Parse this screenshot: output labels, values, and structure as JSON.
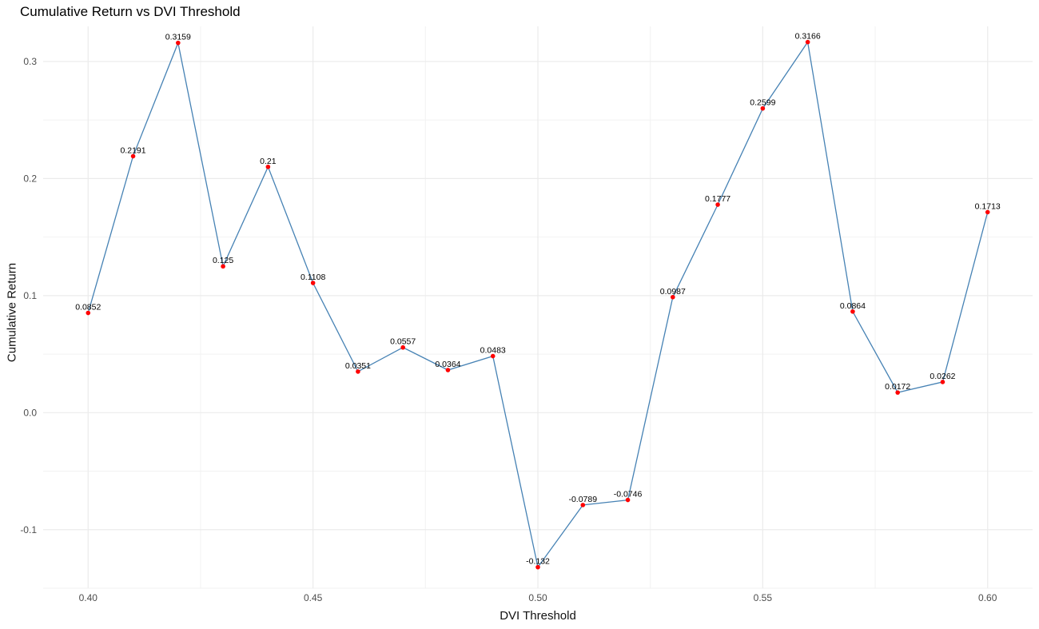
{
  "chart_data": {
    "type": "line",
    "title": "Cumulative Return vs DVI Threshold",
    "xlabel": "DVI Threshold",
    "ylabel": "Cumulative Return",
    "xlim": [
      0.39,
      0.61
    ],
    "ylim": [
      -0.15,
      0.33
    ],
    "x_ticks": [
      0.4,
      0.45,
      0.5,
      0.55,
      0.6
    ],
    "x_tick_labels": [
      "0.40",
      "0.45",
      "0.50",
      "0.55",
      "0.60"
    ],
    "y_ticks": [
      -0.1,
      0.0,
      0.1,
      0.2,
      0.3
    ],
    "y_tick_labels": [
      "-0.1",
      "0.0",
      "0.1",
      "0.2",
      "0.3"
    ],
    "grid": true,
    "line_color": "#4682b4",
    "point_color": "#ff0000",
    "x": [
      0.4,
      0.41,
      0.42,
      0.43,
      0.44,
      0.45,
      0.46,
      0.47,
      0.48,
      0.49,
      0.5,
      0.51,
      0.52,
      0.53,
      0.54,
      0.55,
      0.56,
      0.57,
      0.58,
      0.59,
      0.6
    ],
    "values": [
      0.0852,
      0.2191,
      0.3159,
      0.125,
      0.21,
      0.1108,
      0.0351,
      0.0557,
      0.0364,
      0.0483,
      -0.132,
      -0.0789,
      -0.0746,
      0.0987,
      0.1777,
      0.2599,
      0.3166,
      0.0864,
      0.0172,
      0.0262,
      0.1713
    ],
    "labels": [
      "0.0852",
      "0.2191",
      "0.3159",
      "0.125",
      "0.21",
      "0.1108",
      "0.0351",
      "0.0557",
      "0.0364",
      "0.0483",
      "-0.132",
      "-0.0789",
      "-0.0746",
      "0.0987",
      "0.1777",
      "0.2599",
      "0.3166",
      "0.0864",
      "0.0172",
      "0.0262",
      "0.1713"
    ]
  }
}
